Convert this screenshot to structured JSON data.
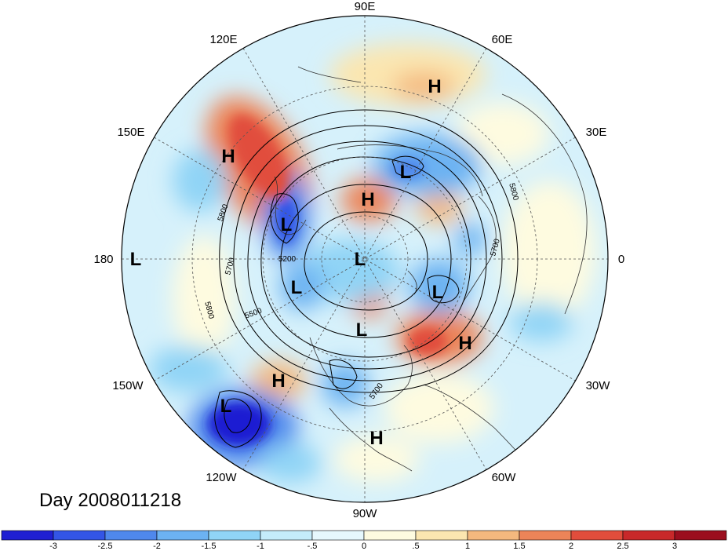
{
  "map": {
    "projection": "north-polar-stereographic",
    "day_label": "Day 2008011218",
    "longitude_labels": [
      {
        "id": "lon-90e",
        "text": "90E"
      },
      {
        "id": "lon-120e",
        "text": "120E"
      },
      {
        "id": "lon-60e",
        "text": "60E"
      },
      {
        "id": "lon-150e",
        "text": "150E"
      },
      {
        "id": "lon-30e",
        "text": "30E"
      },
      {
        "id": "lon-180",
        "text": "180"
      },
      {
        "id": "lon-0",
        "text": "0"
      },
      {
        "id": "lon-150w",
        "text": "150W"
      },
      {
        "id": "lon-30w",
        "text": "30W"
      },
      {
        "id": "lon-120w",
        "text": "120W"
      },
      {
        "id": "lon-60w",
        "text": "60W"
      },
      {
        "id": "lon-90w",
        "text": "90W"
      }
    ],
    "pressure_centers": [
      {
        "id": "c1",
        "text": "H"
      },
      {
        "id": "c2",
        "text": "H"
      },
      {
        "id": "c3",
        "text": "L"
      },
      {
        "id": "c4",
        "text": "H"
      },
      {
        "id": "c5",
        "text": "L"
      },
      {
        "id": "c6",
        "text": "L"
      },
      {
        "id": "c7",
        "text": "L"
      },
      {
        "id": "c8",
        "text": "L"
      },
      {
        "id": "c9",
        "text": "L"
      },
      {
        "id": "c10",
        "text": "L"
      },
      {
        "id": "c11",
        "text": "H"
      },
      {
        "id": "c12",
        "text": "H"
      },
      {
        "id": "c13",
        "text": "L"
      },
      {
        "id": "c14",
        "text": "H"
      }
    ],
    "contour_labels": [
      {
        "id": "cl1",
        "text": "5800"
      },
      {
        "id": "cl2",
        "text": "5700"
      },
      {
        "id": "cl3",
        "text": "5800"
      },
      {
        "id": "cl4",
        "text": "5500"
      },
      {
        "id": "cl5",
        "text": "5200"
      },
      {
        "id": "cl6",
        "text": "5800"
      },
      {
        "id": "cl7",
        "text": "5700"
      },
      {
        "id": "cl8",
        "text": "5700"
      }
    ]
  },
  "colorbar": {
    "tick_labels": [
      "-3",
      "-2.5",
      "-2",
      "-1.5",
      "-1",
      "-.5",
      "0",
      ".5",
      "1",
      "1.5",
      "2",
      "2.5",
      "3"
    ],
    "colors": [
      "#1f1fd2",
      "#3355e6",
      "#4f88ec",
      "#6cb2f2",
      "#90d4f6",
      "#c4ecfa",
      "#e6f8fd",
      "#fefbe0",
      "#fbe6b0",
      "#f4b87e",
      "#ec8458",
      "#e14d3c",
      "#c8282a",
      "#9b0e1e"
    ]
  }
}
